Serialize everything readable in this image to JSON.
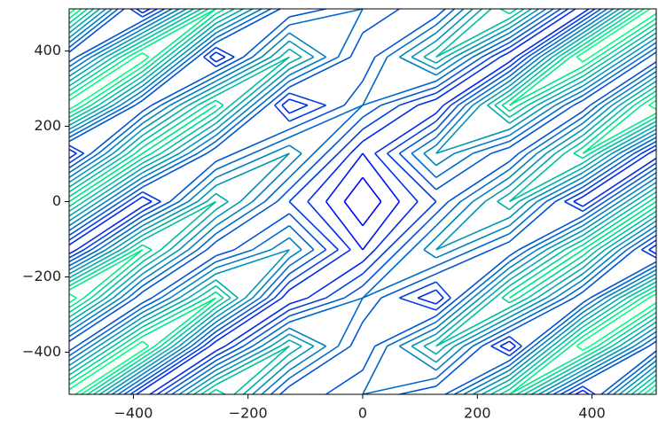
{
  "chart_data": {
    "type": "contour",
    "colormap": "winter",
    "x": [
      -512,
      -384,
      -256,
      -128,
      0,
      128,
      256,
      384,
      512
    ],
    "y": [
      -512,
      -384,
      -256,
      -128,
      0,
      128,
      256,
      384,
      512
    ],
    "z": [
      [
        8,
        2,
        7,
        3,
        4,
        3,
        7,
        2,
        8
      ],
      [
        3,
        8,
        2,
        6,
        3,
        6,
        2,
        8,
        3
      ],
      [
        8,
        3,
        7,
        2,
        4,
        2,
        7,
        3,
        8
      ],
      [
        2,
        7,
        3,
        5,
        2,
        5,
        3,
        7,
        2
      ],
      [
        7,
        2,
        6,
        3,
        1,
        3,
        6,
        2,
        7
      ],
      [
        2,
        7,
        3,
        5,
        2,
        5,
        3,
        7,
        2
      ],
      [
        8,
        3,
        7,
        2,
        4,
        2,
        7,
        3,
        8
      ],
      [
        3,
        8,
        2,
        6,
        3,
        6,
        2,
        8,
        3
      ],
      [
        8,
        2,
        7,
        3,
        4,
        3,
        7,
        2,
        8
      ]
    ],
    "levels": [
      1.5,
      2,
      2.5,
      3,
      3.5,
      4,
      4.5,
      5,
      5.5,
      6,
      6.5,
      7,
      7.5
    ],
    "xlim": [
      -512,
      512
    ],
    "ylim": [
      -512,
      512
    ],
    "xticks": [
      {
        "value": -400,
        "label": "−400"
      },
      {
        "value": -200,
        "label": "−200"
      },
      0,
      200,
      400
    ],
    "yticks": [
      {
        "value": -400,
        "label": "−400"
      },
      {
        "value": -200,
        "label": "−200"
      },
      0,
      200,
      400
    ]
  }
}
